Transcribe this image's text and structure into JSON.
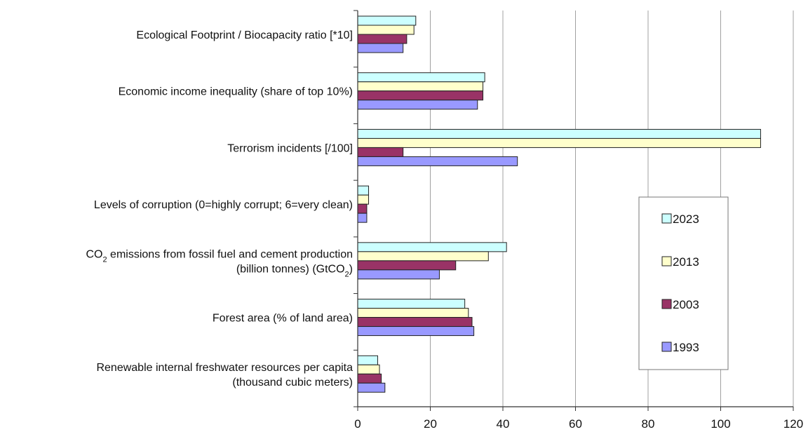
{
  "chart_data": {
    "type": "bar",
    "orientation": "horizontal",
    "categories": [
      [
        "Ecological Footprint / Biocapacity ratio [*10]"
      ],
      [
        "Economic income inequality (share of top 10%)"
      ],
      [
        "Terrorism incidents [/100]"
      ],
      [
        "Levels of corruption (0=highly corrupt; 6=very clean)"
      ],
      [
        "CO2 emissions from fossil fuel and cement production",
        "(billion tonnes)  (GtCO2)"
      ],
      [
        "Forest area (% of land area)"
      ],
      [
        "Renewable internal freshwater resources per capita",
        "(thousand cubic meters)"
      ]
    ],
    "series": [
      {
        "name": "2023",
        "color": "#ccffff",
        "values": [
          16,
          35,
          111,
          3,
          41,
          29.5,
          5.5
        ]
      },
      {
        "name": "2013",
        "color": "#ffffcc",
        "values": [
          15.5,
          34.5,
          111,
          3,
          36,
          30.5,
          6
        ]
      },
      {
        "name": "2003",
        "color": "#993366",
        "values": [
          13.5,
          34.5,
          12.5,
          2.5,
          27,
          31.5,
          6.5
        ]
      },
      {
        "name": "1993",
        "color": "#9999ff",
        "values": [
          12.5,
          33,
          44,
          2.5,
          22.5,
          32,
          7.5
        ]
      }
    ],
    "xlim": [
      0,
      120
    ],
    "xticks": [
      0,
      20,
      40,
      60,
      80,
      100,
      120
    ],
    "xlabel": "",
    "ylabel": "",
    "title": "",
    "grid": "vertical",
    "legend_position": "right"
  }
}
